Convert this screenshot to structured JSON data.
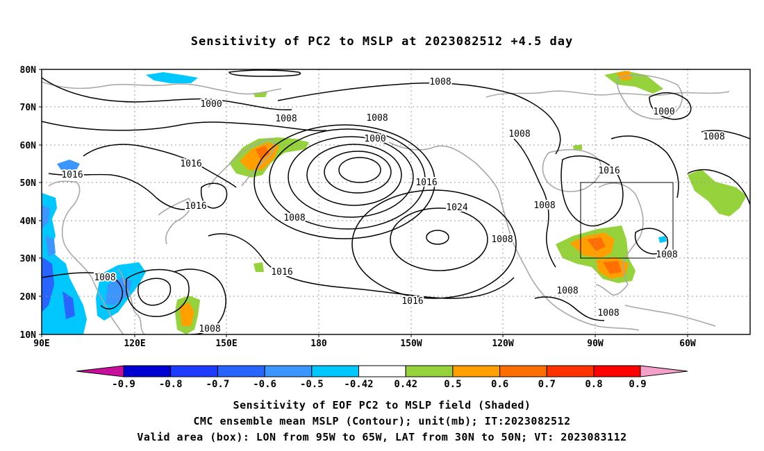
{
  "title": "Sensitivity of PC2 to MSLP at 2023082512 +4.5 day",
  "map": {
    "lat_labels": [
      "80N",
      "70N",
      "60N",
      "50N",
      "40N",
      "30N",
      "20N",
      "10N"
    ],
    "lon_labels": [
      "90E",
      "120E",
      "150E",
      "180",
      "150W",
      "120W",
      "90W",
      "60W"
    ],
    "contour_labels": [
      "1008",
      "1000",
      "1000",
      "1008",
      "1008",
      "1008",
      "1016",
      "1016",
      "1008",
      "1000",
      "1008",
      "1016",
      "1016",
      "1024",
      "1008",
      "1008",
      "1016",
      "1008",
      "1016",
      "1016",
      "1008",
      "1008",
      "1008",
      "1008"
    ],
    "valid_box": {
      "lon_west": "95W",
      "lon_east": "65W",
      "lat_south": "30N",
      "lat_north": "50N"
    },
    "colors": {
      "contour": "#000000",
      "coastline": "#a8a8a8",
      "grid": "#999999"
    }
  },
  "colorbar": {
    "labels": [
      "-0.9",
      "-0.8",
      "-0.7",
      "-0.6",
      "-0.5",
      "-0.42",
      "0.42",
      "0.5",
      "0.6",
      "0.7",
      "0.8",
      "0.9"
    ],
    "colors": [
      "#c80f9b",
      "#0000d2",
      "#1e3cff",
      "#2864ff",
      "#3c96ff",
      "#00c8ff",
      "#ffffff",
      "#96d23c",
      "#ffa000",
      "#ff6e00",
      "#ff3200",
      "#ff0000",
      "#f5a0c8"
    ]
  },
  "captions": [
    "Sensitivity of EOF PC2 to MSLP field (Shaded)",
    "CMC ensemble mean MSLP (Contour); unit(mb); IT:2023082512",
    "Valid area (box): LON from 95W to 65W, LAT from 30N to 50N; VT: 2023083112"
  ]
}
